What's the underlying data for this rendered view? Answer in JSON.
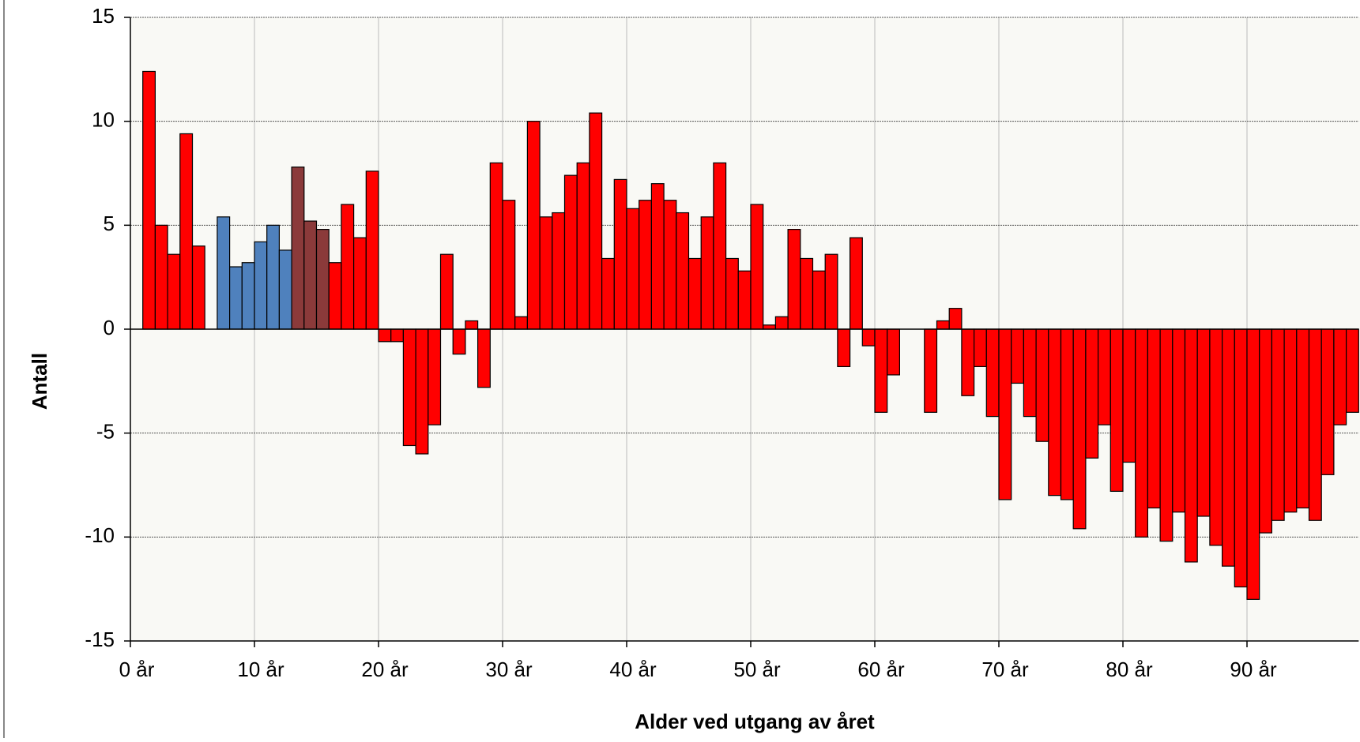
{
  "chart_data": {
    "type": "bar",
    "x_label": "Alder ved utgang av året",
    "y_label": "Antall",
    "categories": [
      "0 år",
      null,
      null,
      null,
      null,
      null,
      null,
      null,
      null,
      null,
      "10 år",
      null,
      null,
      null,
      null,
      null,
      null,
      null,
      null,
      null,
      "20 år",
      null,
      null,
      null,
      null,
      null,
      null,
      null,
      null,
      null,
      "30 år",
      null,
      null,
      null,
      null,
      null,
      null,
      null,
      null,
      null,
      "40 år",
      null,
      null,
      null,
      null,
      null,
      null,
      null,
      null,
      null,
      "50 år",
      null,
      null,
      null,
      null,
      null,
      null,
      null,
      null,
      null,
      "60 år",
      null,
      null,
      null,
      null,
      null,
      null,
      null,
      null,
      null,
      "70 år",
      null,
      null,
      null,
      null,
      null,
      null,
      null,
      null,
      null,
      "80 år",
      null,
      null,
      null,
      null,
      null,
      null,
      null,
      null,
      null,
      "90 år",
      null,
      null,
      null,
      null,
      null,
      null,
      null,
      null
    ],
    "values": [
      0,
      12.4,
      5,
      3.6,
      9.4,
      4,
      0,
      5.4,
      3.0,
      3.2,
      4.2,
      5.0,
      3.8,
      7.8,
      5.2,
      4.8,
      3.2,
      6.0,
      4.4,
      7.6,
      -0.6,
      -0.6,
      -5.6,
      -6.0,
      -4.6,
      3.6,
      -1.2,
      0.4,
      -2.8,
      8.0,
      6.2,
      0.6,
      10.0,
      5.4,
      5.6,
      7.4,
      8.0,
      10.4,
      3.4,
      7.2,
      5.8,
      6.2,
      7.0,
      6.2,
      5.6,
      3.4,
      5.4,
      8.0,
      3.4,
      2.8,
      6.0,
      0.2,
      0.6,
      4.8,
      3.4,
      2.8,
      3.6,
      -1.8,
      4.4,
      -0.8,
      -4.0,
      -2.2,
      0,
      0,
      -4.0,
      0.4,
      1.0,
      -3.2,
      -1.8,
      -4.2,
      -8.2,
      -2.6,
      -4.2,
      -5.4,
      -8.0,
      -8.2,
      -9.6,
      -6.2,
      -4.6,
      -7.8,
      -6.4,
      -10.0,
      -8.6,
      -10.2,
      -8.8,
      -11.2,
      -9.0,
      -10.4,
      -11.4,
      -12.4,
      -13.0,
      -9.8,
      -9.2,
      -8.8,
      -8.6,
      -9.2,
      -7.0,
      -4.6,
      -4.0
    ],
    "bar_colors": [
      "#ff0000",
      "#ff0000",
      "#ff0000",
      "#ff0000",
      "#ff0000",
      "#ff0000",
      "#ff0000",
      "#4f81bd",
      "#4f81bd",
      "#4f81bd",
      "#4f81bd",
      "#4f81bd",
      "#4f81bd",
      "#8b3a3a",
      "#8b3a3a",
      "#8b3a3a",
      "#ff0000",
      "#ff0000",
      "#ff0000",
      "#ff0000",
      "#ff0000",
      "#ff0000",
      "#ff0000",
      "#ff0000",
      "#ff0000",
      "#ff0000",
      "#ff0000",
      "#ff0000",
      "#ff0000",
      "#ff0000",
      "#ff0000",
      "#ff0000",
      "#ff0000",
      "#ff0000",
      "#ff0000",
      "#ff0000",
      "#ff0000",
      "#ff0000",
      "#ff0000",
      "#ff0000",
      "#ff0000",
      "#ff0000",
      "#ff0000",
      "#ff0000",
      "#ff0000",
      "#ff0000",
      "#ff0000",
      "#ff0000",
      "#ff0000",
      "#ff0000",
      "#ff0000",
      "#ff0000",
      "#ff0000",
      "#ff0000",
      "#ff0000",
      "#ff0000",
      "#ff0000",
      "#ff0000",
      "#ff0000",
      "#ff0000",
      "#ff0000",
      "#ff0000",
      "#ff0000",
      "#ff0000",
      "#ff0000",
      "#ff0000",
      "#ff0000",
      "#ff0000",
      "#ff0000",
      "#ff0000",
      "#ff0000",
      "#ff0000",
      "#ff0000",
      "#ff0000",
      "#ff0000",
      "#ff0000",
      "#ff0000",
      "#ff0000",
      "#ff0000",
      "#ff0000",
      "#ff0000",
      "#ff0000",
      "#ff0000",
      "#ff0000",
      "#ff0000",
      "#ff0000",
      "#ff0000",
      "#ff0000",
      "#ff0000",
      "#ff0000",
      "#ff0000",
      "#ff0000",
      "#ff0000",
      "#ff0000",
      "#ff0000",
      "#ff0000",
      "#ff0000",
      "#ff0000",
      "#ff0000"
    ],
    "ylim": [
      -15,
      15
    ],
    "yticks": [
      -15,
      -10,
      -5,
      0,
      5,
      10,
      15
    ],
    "grid": true
  }
}
